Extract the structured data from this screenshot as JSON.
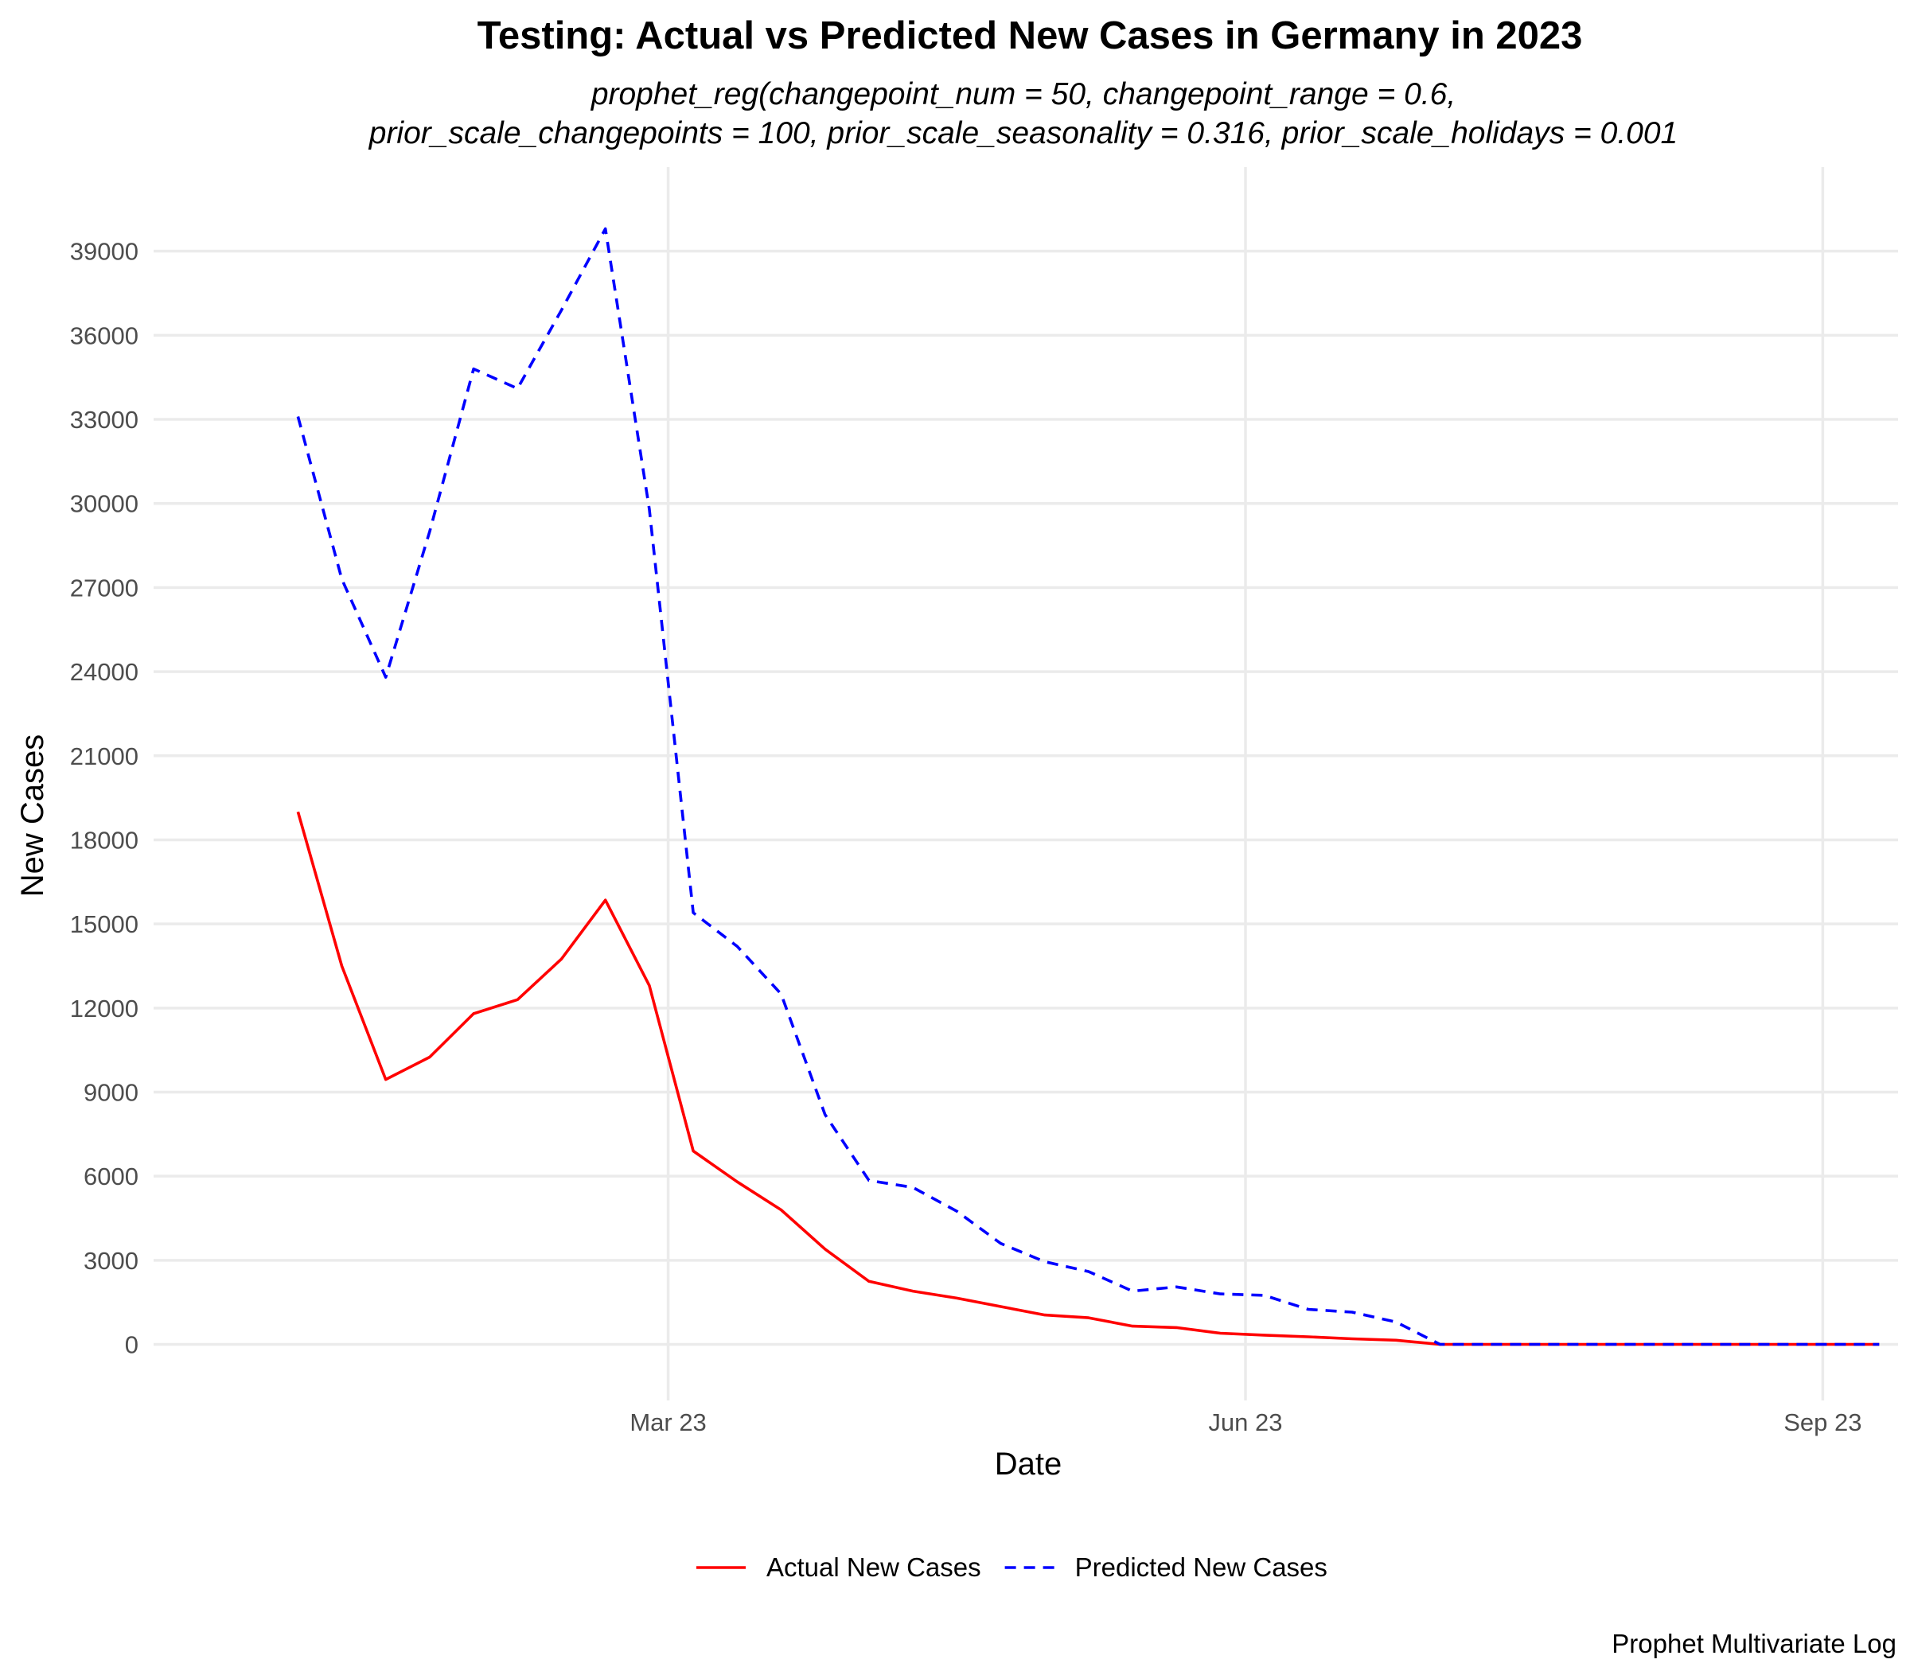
{
  "chart_data": {
    "type": "line",
    "title": "Testing: Actual vs Predicted New Cases in Germany in 2023",
    "subtitle_lines": [
      "prophet_reg(changepoint_num = 50, changepoint_range = 0.6,",
      "prior_scale_changepoints = 100, prior_scale_seasonality = 0.316, prior_scale_holidays = 0.001"
    ],
    "xlabel": "Date",
    "ylabel": "New Cases",
    "caption": "Prophet Multivariate Log",
    "x_ticks": [
      {
        "date": "2023-03-01",
        "label": "Mar 23"
      },
      {
        "date": "2023-06-01",
        "label": "Jun 23"
      },
      {
        "date": "2023-09-01",
        "label": "Sep 23"
      }
    ],
    "xlim": [
      "2022-12-09",
      "2023-09-13"
    ],
    "y_ticks": [
      0,
      3000,
      6000,
      9000,
      12000,
      15000,
      18000,
      21000,
      24000,
      27000,
      30000,
      33000,
      36000,
      39000
    ],
    "ylim": [
      -2000,
      42000
    ],
    "grid": true,
    "legend_position": "bottom",
    "x": [
      "2023-01-01",
      "2023-01-08",
      "2023-01-15",
      "2023-01-22",
      "2023-01-29",
      "2023-02-05",
      "2023-02-12",
      "2023-02-19",
      "2023-02-26",
      "2023-03-05",
      "2023-03-12",
      "2023-03-19",
      "2023-03-26",
      "2023-04-02",
      "2023-04-09",
      "2023-04-16",
      "2023-04-23",
      "2023-04-30",
      "2023-05-07",
      "2023-05-14",
      "2023-05-21",
      "2023-05-28",
      "2023-06-04",
      "2023-06-11",
      "2023-06-18",
      "2023-06-25",
      "2023-07-02",
      "2023-07-09",
      "2023-07-16",
      "2023-07-23",
      "2023-07-30",
      "2023-08-06",
      "2023-08-13",
      "2023-08-20",
      "2023-08-27",
      "2023-09-03",
      "2023-09-10"
    ],
    "series": [
      {
        "name": "Actual New Cases",
        "color": "#ff0000",
        "dash": "solid",
        "values": [
          19000,
          13500,
          9450,
          10250,
          11800,
          12300,
          13750,
          15850,
          12800,
          6900,
          5800,
          4800,
          3400,
          2250,
          1900,
          1650,
          1350,
          1050,
          950,
          650,
          600,
          400,
          330,
          270,
          200,
          150,
          0,
          0,
          0,
          0,
          0,
          0,
          0,
          0,
          0,
          0,
          0
        ]
      },
      {
        "name": "Predicted New Cases",
        "color": "#0000ff",
        "dash": "dashed",
        "values": [
          33100,
          27300,
          23800,
          29000,
          34800,
          34100,
          36900,
          39800,
          29800,
          15400,
          14200,
          12500,
          8200,
          5850,
          5600,
          4750,
          3600,
          2950,
          2600,
          1900,
          2050,
          1800,
          1750,
          1250,
          1150,
          800,
          0,
          0,
          0,
          0,
          0,
          0,
          0,
          0,
          0,
          0,
          0
        ]
      }
    ]
  }
}
